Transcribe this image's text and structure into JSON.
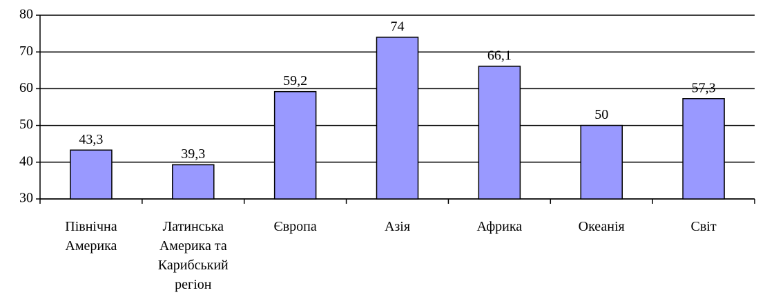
{
  "chart_data": {
    "type": "bar",
    "categories": [
      "Північна Америка",
      "Латинська Америка та Карибський регіон",
      "Європа",
      "Азія",
      "Африка",
      "Океанія",
      "Світ"
    ],
    "values": [
      43.3,
      39.3,
      59.2,
      74,
      66.1,
      50,
      57.3
    ],
    "value_labels": [
      "43,3",
      "39,3",
      "59,2",
      "74",
      "66,1",
      "50",
      "57,3"
    ],
    "color": "#9999ff",
    "ylim": [
      30,
      80
    ],
    "yticks": [
      30,
      40,
      50,
      60,
      70,
      80
    ],
    "grid": true
  }
}
